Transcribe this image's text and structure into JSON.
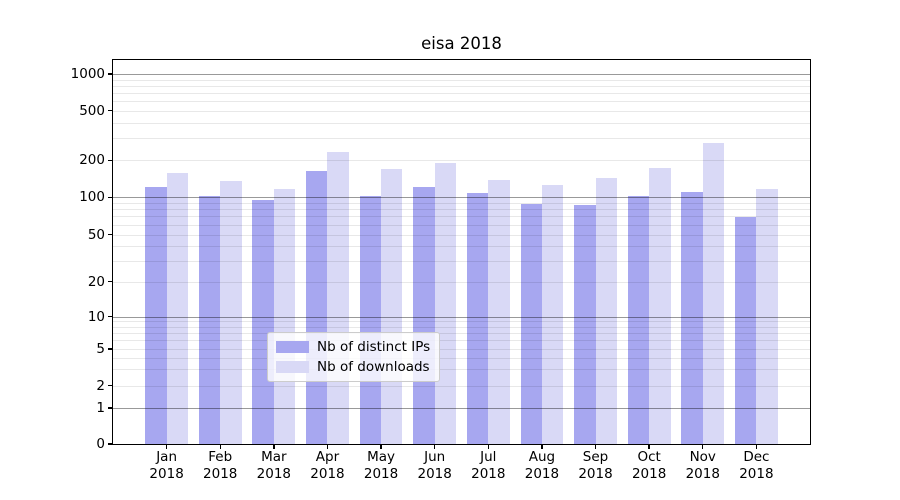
{
  "chart_data": {
    "type": "bar",
    "title": "eisa 2018",
    "categories": [
      "Jan 2018",
      "Feb 2018",
      "Mar 2018",
      "Apr 2018",
      "May 2018",
      "Jun 2018",
      "Jul 2018",
      "Aug 2018",
      "Sep 2018",
      "Oct 2018",
      "Nov 2018",
      "Dec 2018"
    ],
    "series": [
      {
        "name": "Nb of distinct IPs",
        "color": "#a7a7f0",
        "values": [
          122,
          102,
          95,
          164,
          102,
          121,
          109,
          88,
          86,
          103,
          111,
          69
        ]
      },
      {
        "name": "Nb of downloads",
        "color": "#d9d9f6",
        "values": [
          158,
          136,
          116,
          235,
          170,
          190,
          138,
          125,
          145,
          172,
          277,
          117
        ]
      }
    ],
    "yscale": "symlog",
    "y_ticks": [
      0,
      1,
      2,
      5,
      10,
      20,
      50,
      100,
      200,
      500,
      1000
    ],
    "y_minor_gridlines": [
      2,
      3,
      4,
      5,
      6,
      7,
      8,
      9,
      20,
      30,
      40,
      50,
      60,
      70,
      80,
      90,
      200,
      300,
      400,
      500,
      600,
      700,
      800,
      900
    ],
    "y_major_gridlines": [
      1,
      10,
      100,
      1000
    ],
    "ylim": [
      0,
      1300
    ],
    "grid": true,
    "legend": {
      "position": "lower center"
    }
  }
}
